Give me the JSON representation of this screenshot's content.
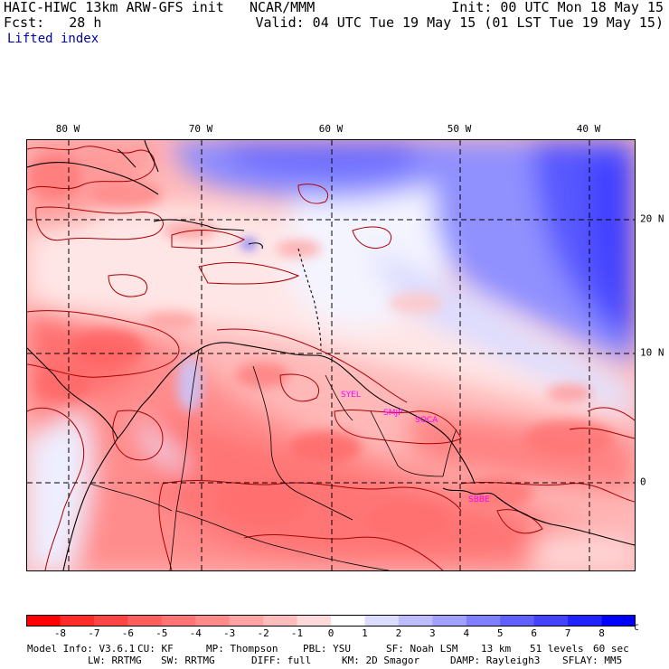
{
  "header": {
    "model_line": "HAIC-HIWC 13km ARW-GFS init",
    "org": "NCAR/MMM",
    "init": "Init: 00 UTC Mon 18 May 15",
    "fcst": "Fcst:   28 h",
    "valid": "Valid: 04 UTC Tue 19 May 15 (01 LST Tue 19 May 15)",
    "field": "Lifted index"
  },
  "map": {
    "lon_labels": [
      "80 W",
      "70 W",
      "60 W",
      "50 W",
      "40 W"
    ],
    "lat_labels": [
      "20 N",
      "10 N",
      "0"
    ],
    "stations": [
      "SYEL",
      "SMJP",
      "SOCA",
      "SBBE"
    ]
  },
  "colorbar": {
    "ticks": [
      "-8",
      "-7",
      "-6",
      "-5",
      "-4",
      "-3",
      "-2",
      "-1",
      "0",
      "1",
      "2",
      "3",
      "4",
      "5",
      "6",
      "7",
      "8"
    ],
    "unit": "°C",
    "colors": [
      "#ff0000",
      "#ff2a2a",
      "#ff4444",
      "#ff5e5e",
      "#ff7474",
      "#ff8a8a",
      "#ffa3a3",
      "#ffbcbc",
      "#ffdada",
      "#ffffff",
      "#dcdcff",
      "#bcbcff",
      "#a0a0ff",
      "#8080ff",
      "#6060ff",
      "#4242ff",
      "#2222ff",
      "#0000ff"
    ]
  },
  "footer": {
    "line1": [
      "Model Info: V3.6.1",
      "CU: KF",
      "MP: Thompson",
      "PBL: YSU",
      "SF: Noah LSM",
      "13 km",
      "51 levels",
      "60 sec"
    ],
    "line2": [
      "LW: RRTMG",
      "SW: RRTMG",
      "DIFF: full",
      "KM: 2D Smagor",
      "DAMP: Rayleigh3",
      "SFLAY: MM5"
    ]
  }
}
